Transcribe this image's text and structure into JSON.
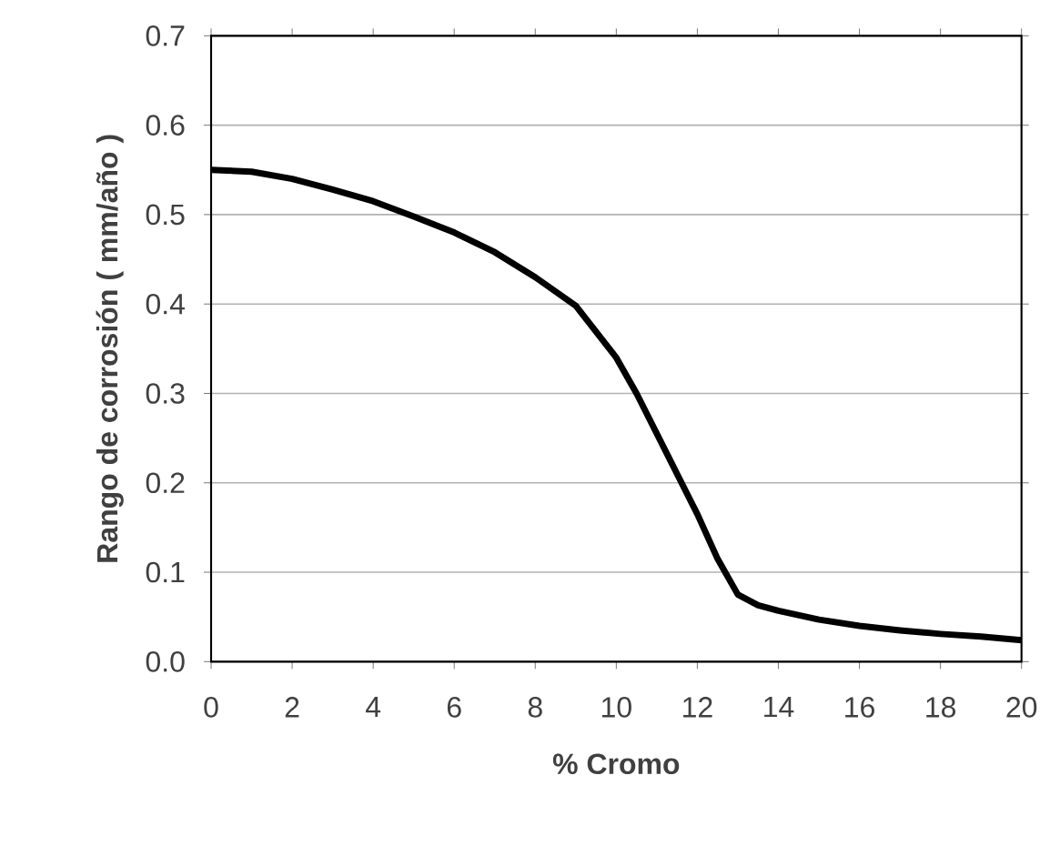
{
  "chart_data": {
    "type": "line",
    "xlabel": "% Cromo",
    "ylabel": "Rango de corrosión ( mm/año )",
    "x": [
      0,
      1,
      2,
      3,
      4,
      5,
      6,
      7,
      8,
      9,
      10,
      10.5,
      11,
      11.5,
      12,
      12.5,
      13,
      13.5,
      14,
      15,
      16,
      17,
      18,
      19,
      20
    ],
    "series": [
      {
        "color": "#000000",
        "values": [
          0.55,
          0.548,
          0.54,
          0.528,
          0.515,
          0.498,
          0.48,
          0.458,
          0.43,
          0.398,
          0.34,
          0.3,
          0.255,
          0.21,
          0.165,
          0.115,
          0.075,
          0.063,
          0.057,
          0.047,
          0.04,
          0.035,
          0.031,
          0.028,
          0.024
        ]
      }
    ],
    "xlim": [
      0,
      20
    ],
    "ylim": [
      0,
      0.7
    ],
    "xticks": [
      0,
      2,
      4,
      6,
      8,
      10,
      12,
      14,
      16,
      18,
      20
    ],
    "yticks": [
      {
        "value": 0,
        "label": "0.0"
      },
      {
        "value": 0.1,
        "label": "0.1"
      },
      {
        "value": 0.2,
        "label": "0.2"
      },
      {
        "value": 0.3,
        "label": "0.3"
      },
      {
        "value": 0.4,
        "label": "0.4"
      },
      {
        "value": 0.5,
        "label": "0.5"
      },
      {
        "value": 0.6,
        "label": "0.6"
      },
      {
        "value": 0.7,
        "label": "0.7"
      }
    ],
    "grid": "y",
    "marker": "none",
    "line_style": "solid"
  }
}
